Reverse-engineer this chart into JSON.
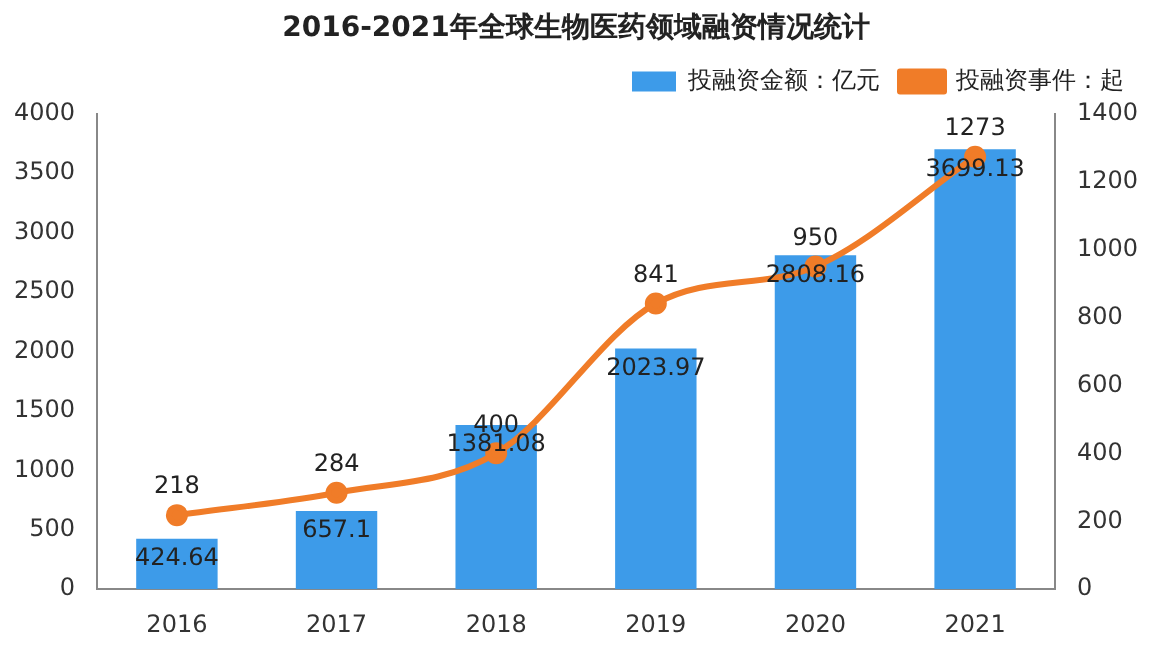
{
  "chart_data": {
    "type": "bar",
    "title": "2016-2021年全球生物医药领域融资情况统计",
    "categories": [
      "2016",
      "2017",
      "2018",
      "2019",
      "2020",
      "2021"
    ],
    "series": [
      {
        "name": "投融资金额：亿元",
        "color": "#3d9be9",
        "values": [
          424.64,
          657.1,
          1381.08,
          2023.97,
          2808.16,
          3699.13
        ]
      },
      {
        "name": "投融资事件：起",
        "type": "line",
        "axis": "y2",
        "color": "#f07c28",
        "values": [
          218,
          284,
          400,
          841,
          950,
          1273
        ]
      }
    ],
    "ylim": [
      0,
      4000
    ],
    "yticks": [
      0,
      500,
      1000,
      1500,
      2000,
      2500,
      3000,
      3500,
      4000
    ],
    "y2lim": [
      0,
      1400
    ],
    "y2ticks": [
      0,
      200,
      400,
      600,
      800,
      1000,
      1200,
      1400
    ],
    "data_labels": true,
    "legend": "top right",
    "grid": false,
    "marker": "circle",
    "line_style": "solid"
  }
}
